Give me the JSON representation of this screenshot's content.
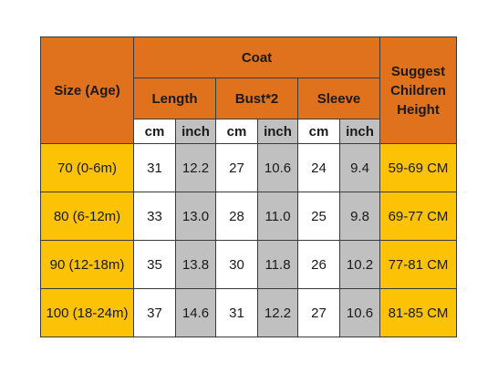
{
  "headers": {
    "size": "Size (Age)",
    "coat": "Coat",
    "length": "Length",
    "bust": "Bust*2",
    "sleeve": "Sleeve",
    "height": "Suggest Children Height",
    "units": [
      "cm",
      "inch",
      "cm",
      "inch",
      "cm",
      "inch"
    ]
  },
  "rows": [
    {
      "size": "70 (0-6m)",
      "length_cm": "31",
      "length_inch": "12.2",
      "bust_cm": "27",
      "bust_inch": "10.6",
      "sleeve_cm": "24",
      "sleeve_inch": "9.4",
      "height": "59-69 CM"
    },
    {
      "size": "80 (6-12m)",
      "length_cm": "33",
      "length_inch": "13.0",
      "bust_cm": "28",
      "bust_inch": "11.0",
      "sleeve_cm": "25",
      "sleeve_inch": "9.8",
      "height": "69-77 CM"
    },
    {
      "size": "90 (12-18m)",
      "length_cm": "35",
      "length_inch": "13.8",
      "bust_cm": "30",
      "bust_inch": "11.8",
      "sleeve_cm": "26",
      "sleeve_inch": "10.2",
      "height": "77-81 CM"
    },
    {
      "size": "100 (18-24m)",
      "length_cm": "37",
      "length_inch": "14.6",
      "bust_cm": "31",
      "bust_inch": "12.2",
      "sleeve_cm": "27",
      "sleeve_inch": "10.6",
      "height": "81-85 CM"
    }
  ],
  "colors": {
    "header_orange": "#e0711d",
    "size_yellow": "#fcc206",
    "inch_gray": "#c0c0c0"
  }
}
